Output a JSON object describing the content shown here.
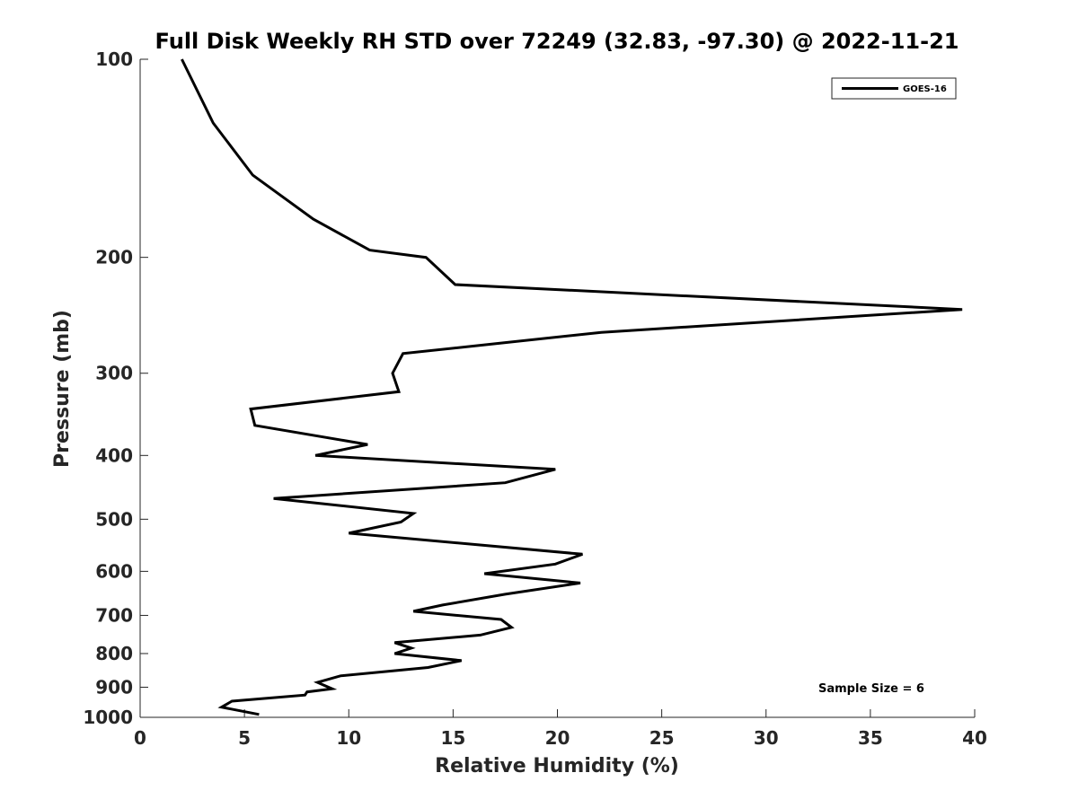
{
  "chart_data": {
    "type": "line",
    "title": "Full Disk Weekly RH STD over 72249 (32.83, -97.30) @ 2022-11-21",
    "xlabel": "Relative Humidity (%)",
    "ylabel": "Pressure (mb)",
    "xlim": [
      0,
      40
    ],
    "ylim": [
      100,
      1000
    ],
    "y_scale": "log",
    "y_reversed": true,
    "x_ticks": [
      0,
      5,
      10,
      15,
      20,
      25,
      30,
      35,
      40
    ],
    "y_ticks": [
      100,
      200,
      300,
      400,
      500,
      600,
      700,
      800,
      900,
      1000
    ],
    "grid": false,
    "legend_position": "top-right",
    "annotation": "Sample Size = 6",
    "series": [
      {
        "name": "GOES-16",
        "color": "#000000",
        "points": [
          [
            2.0,
            100
          ],
          [
            3.5,
            125
          ],
          [
            5.4,
            150
          ],
          [
            8.3,
            175
          ],
          [
            11.0,
            195
          ],
          [
            13.7,
            200
          ],
          [
            15.1,
            220
          ],
          [
            39.4,
            240
          ],
          [
            22.1,
            260
          ],
          [
            12.6,
            280
          ],
          [
            12.1,
            300
          ],
          [
            12.4,
            320
          ],
          [
            5.3,
            340
          ],
          [
            5.5,
            360
          ],
          [
            10.9,
            385
          ],
          [
            8.4,
            400
          ],
          [
            19.9,
            420
          ],
          [
            17.5,
            440
          ],
          [
            6.4,
            465
          ],
          [
            13.1,
            490
          ],
          [
            12.5,
            505
          ],
          [
            10.0,
            525
          ],
          [
            21.2,
            565
          ],
          [
            19.9,
            585
          ],
          [
            16.5,
            605
          ],
          [
            21.1,
            625
          ],
          [
            17.5,
            650
          ],
          [
            14.5,
            675
          ],
          [
            13.1,
            690
          ],
          [
            17.3,
            710
          ],
          [
            17.8,
            730
          ],
          [
            16.3,
            750
          ],
          [
            12.2,
            770
          ],
          [
            13.0,
            785
          ],
          [
            12.2,
            800
          ],
          [
            15.4,
            820
          ],
          [
            13.8,
            840
          ],
          [
            9.6,
            865
          ],
          [
            8.5,
            885
          ],
          [
            9.2,
            905
          ],
          [
            8.0,
            915
          ],
          [
            7.9,
            925
          ],
          [
            4.4,
            945
          ],
          [
            3.9,
            965
          ],
          [
            5.7,
            990
          ]
        ]
      }
    ]
  }
}
